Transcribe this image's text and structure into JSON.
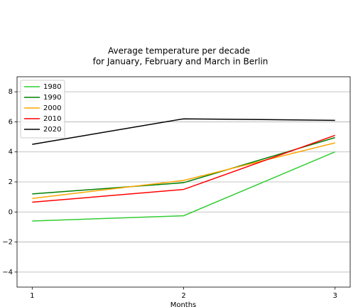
{
  "chart_data": {
    "type": "line",
    "title": [
      "Average temperature per decade",
      "for January, February and March in Berlin"
    ],
    "x_label": "Months",
    "x": [
      1,
      2,
      3
    ],
    "series": [
      {
        "name": "1980",
        "color": "#32cd32",
        "values": [
          -0.6,
          -0.25,
          4.0
        ]
      },
      {
        "name": "1990",
        "color": "#008000",
        "values": [
          1.2,
          1.95,
          4.95
        ]
      },
      {
        "name": "2000",
        "color": "#ffa500",
        "values": [
          0.9,
          2.1,
          4.6
        ]
      },
      {
        "name": "2010",
        "color": "#ff0000",
        "values": [
          0.65,
          1.5,
          5.1
        ]
      },
      {
        "name": "2020",
        "color": "#000000",
        "values": [
          4.5,
          6.2,
          6.1
        ]
      }
    ],
    "xlim": [
      0.9,
      3.1
    ],
    "xticks": [
      1,
      2,
      3
    ],
    "ylim": [
      -5,
      9
    ],
    "yticks": [
      {
        "value": -4,
        "label": "−4"
      },
      {
        "value": -2,
        "label": "−2"
      },
      0,
      2,
      4,
      6,
      8
    ],
    "grid": "y",
    "legend": "upper left"
  }
}
